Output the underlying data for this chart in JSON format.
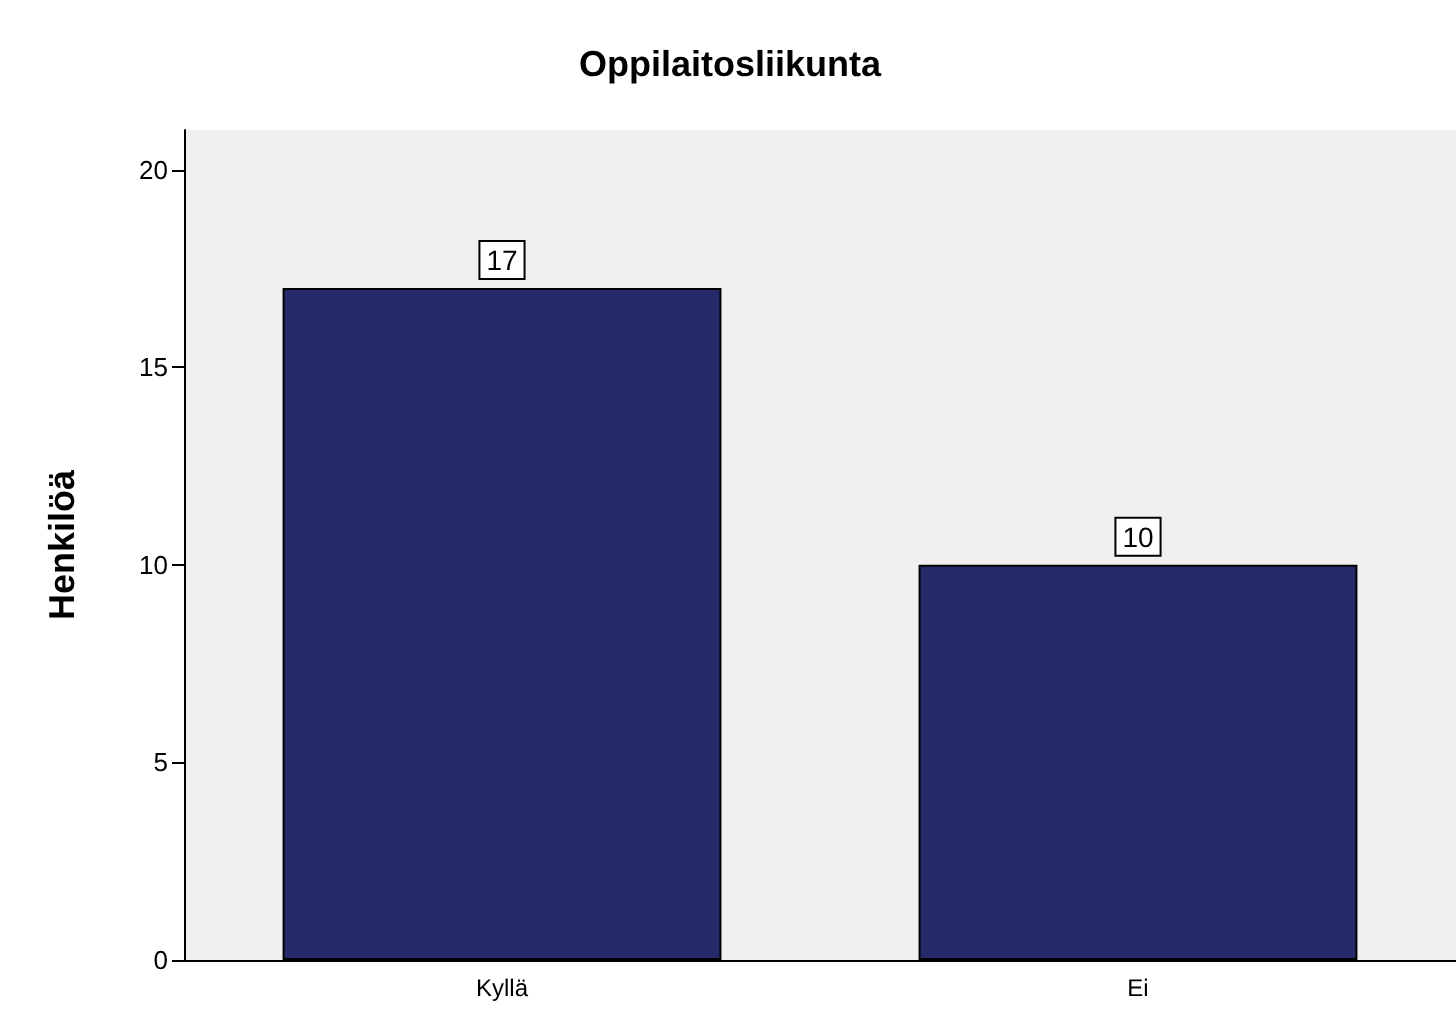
{
  "chart_data": {
    "type": "bar",
    "title": "Oppilaitosliikunta",
    "ylabel": "Henkilöä",
    "categories": [
      "Kyllä",
      "Ei"
    ],
    "values": [
      17,
      10
    ],
    "color": "#262a6b",
    "ylim": [
      0,
      21
    ],
    "yticks": [
      0,
      5,
      10,
      15,
      20
    ],
    "grid": false,
    "data_labels": true
  }
}
